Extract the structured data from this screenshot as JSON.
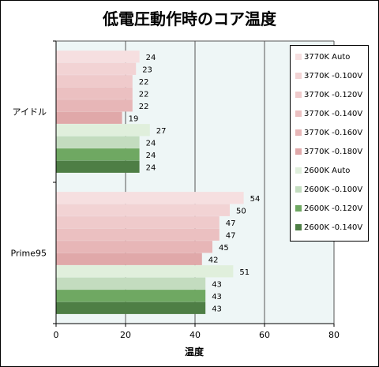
{
  "chart_data": {
    "type": "bar",
    "orientation": "horizontal",
    "title": "低電圧動作時のコア温度",
    "xlabel": "温度",
    "ylabel": "",
    "xlim": [
      0,
      80
    ],
    "xticks": [
      0,
      20,
      40,
      60,
      80
    ],
    "grid": true,
    "legend_position": "right",
    "plot_background": "#eef6f6",
    "categories": [
      "アイドル",
      "Prime95"
    ],
    "series": [
      {
        "name": "3770K Auto",
        "color": "#f6dfe0",
        "values": [
          24,
          54
        ]
      },
      {
        "name": "3770K -0.100V",
        "color": "#f2d3d4",
        "values": [
          23,
          50
        ]
      },
      {
        "name": "3770K -0.120V",
        "color": "#efcacb",
        "values": [
          22,
          47
        ]
      },
      {
        "name": "3770K -0.140V",
        "color": "#ebc0c1",
        "values": [
          22,
          47
        ]
      },
      {
        "name": "3770K -0.160V",
        "color": "#e7b6b7",
        "values": [
          22,
          45
        ]
      },
      {
        "name": "3770K -0.180V",
        "color": "#e0a8a9",
        "values": [
          19,
          42
        ]
      },
      {
        "name": "2600K Auto",
        "color": "#e0efdc",
        "values": [
          27,
          51
        ]
      },
      {
        "name": "2600K -0.100V",
        "color": "#c3dcbf",
        "values": [
          24,
          43
        ]
      },
      {
        "name": "2600K -0.120V",
        "color": "#6fa862",
        "values": [
          24,
          43
        ]
      },
      {
        "name": "2600K -0.140V",
        "color": "#4e7e45",
        "values": [
          24,
          43
        ]
      }
    ]
  }
}
